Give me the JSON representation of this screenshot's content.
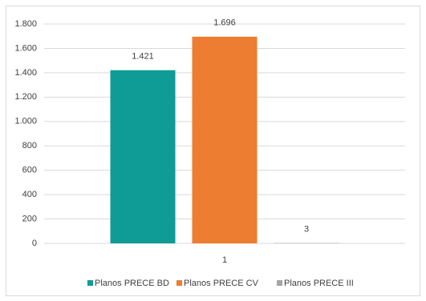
{
  "chart_data": {
    "type": "bar",
    "categories": [
      "1"
    ],
    "series": [
      {
        "name": "Planos PRECE BD",
        "color": "#0f9b96",
        "values": [
          1421
        ],
        "value_labels": [
          "1.421"
        ]
      },
      {
        "name": "Planos PRECE CV",
        "color": "#ed7d31",
        "values": [
          1696
        ],
        "value_labels": [
          "1.696"
        ]
      },
      {
        "name": "Planos PRECE III",
        "color": "#a5a5a5",
        "values": [
          3
        ]
      }
    ],
    "ylim": [
      0,
      1800
    ],
    "yticks": [
      0,
      200,
      400,
      600,
      800,
      {
        "value": 1000,
        "label": "1.000"
      },
      {
        "value": 1200,
        "label": "1.200"
      },
      {
        "value": 1400,
        "label": "1.400"
      },
      {
        "value": 1600,
        "label": "1.600"
      },
      {
        "value": 1800,
        "label": "1.800"
      }
    ],
    "grid": true,
    "legend": "bottom"
  }
}
